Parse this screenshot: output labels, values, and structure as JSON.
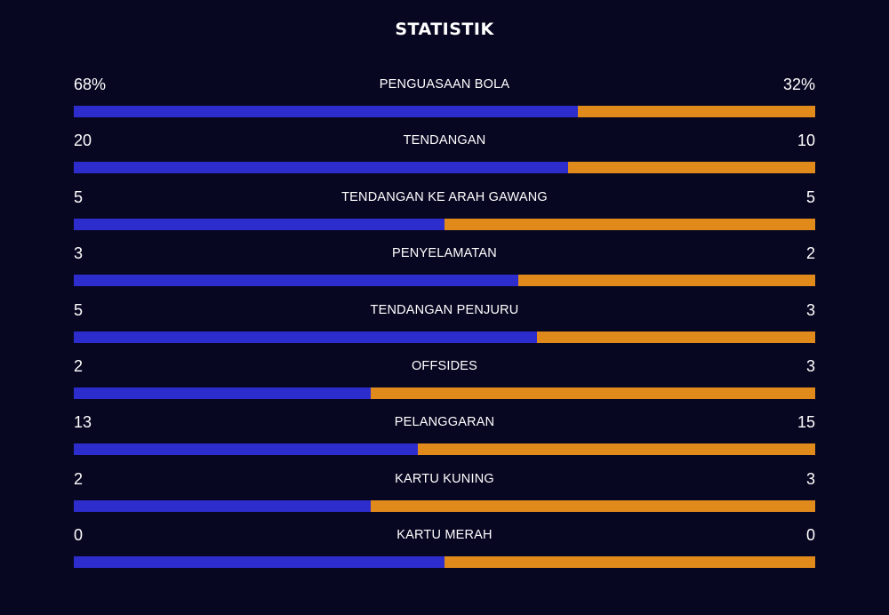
{
  "title": "STATISTIK",
  "colors": {
    "background": "#080722",
    "home_bar": "#2d2ccc",
    "away_bar": "#e08a1c"
  },
  "stats": [
    {
      "label": "PENGUASAAN BOLA",
      "home": "68%",
      "away": "32%",
      "home_share": 0.68
    },
    {
      "label": "TENDANGAN",
      "home": "20",
      "away": "10",
      "home_share": 0.667
    },
    {
      "label": "TENDANGAN KE ARAH GAWANG",
      "home": "5",
      "away": "5",
      "home_share": 0.5
    },
    {
      "label": "PENYELAMATAN",
      "home": "3",
      "away": "2",
      "home_share": 0.6
    },
    {
      "label": "TENDANGAN PENJURU",
      "home": "5",
      "away": "3",
      "home_share": 0.625
    },
    {
      "label": "OFFSIDES",
      "home": "2",
      "away": "3",
      "home_share": 0.4
    },
    {
      "label": "PELANGGARAN",
      "home": "13",
      "away": "15",
      "home_share": 0.464
    },
    {
      "label": "KARTU KUNING",
      "home": "2",
      "away": "3",
      "home_share": 0.4
    },
    {
      "label": "KARTU MERAH",
      "home": "0",
      "away": "0",
      "home_share": 0.5
    }
  ]
}
